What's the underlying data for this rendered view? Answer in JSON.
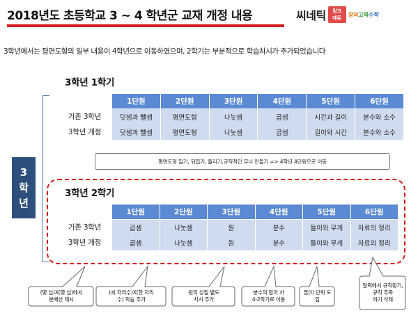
{
  "header": {
    "title": "2018년도 초등학교 3 ~ 4 학년군 교재 개정 내용",
    "brand_name": "씨네틱",
    "brand_box_text": "링크\n에듀",
    "brand_sub": [
      "창의",
      "고력",
      "수학"
    ]
  },
  "intro": "3학년에서는 평면도형의 일부 내용이 4학년으로 이동하였으며, 2학기는 부분적으로 학습차시가 추가되었습니다",
  "grade_tag": [
    "3",
    "학",
    "년"
  ],
  "colors": {
    "header_line": "#d41f1f",
    "table_header": "#5b8ad3",
    "table_cell": "#cfdcf0",
    "grade_tag": "#2c4f7c",
    "dashed_border": "#d31b1b"
  },
  "semester1": {
    "title": "3학년 1학기",
    "units": [
      "1단원",
      "2단원",
      "3단원",
      "4단원",
      "5단원",
      "6단원"
    ],
    "rows": [
      {
        "label": "기존 3학년",
        "cells": [
          "덧셈과 뺄셈",
          "평면도형",
          "나눗셈",
          "곱셈",
          "시간과 길이",
          "분수와 소수"
        ]
      },
      {
        "label": "3학년 개정",
        "cells": [
          "덧셈과 뺄셈",
          "평면도형",
          "나눗셈",
          "곱셈",
          "길이와 시간",
          "분수와 소수"
        ]
      }
    ],
    "note": "평면도형 밀기, 뒤집기, 돌리기,규칙적인 무늬 만들기 => 4학년 4단원으로 이동"
  },
  "semester2": {
    "title": "3학년 2학기",
    "units": [
      "1단원",
      "2단원",
      "3단원",
      "4단원",
      "5단원",
      "6단원"
    ],
    "rows": [
      {
        "label": "기존 3학년",
        "cells": [
          "곱셈",
          "나눗셈",
          "원",
          "분수",
          "들이와 무게",
          "자료의 정리"
        ]
      },
      {
        "label": "3학년 개정",
        "cells": [
          "곱셈",
          "나눗셈",
          "원",
          "분수",
          "들이와 무게",
          "자료의 정리"
        ]
      }
    ]
  },
  "callouts": [
    {
      "lines": [
        "(몇 십)X(몇 십)에서",
        "분배산 제시"
      ]
    },
    {
      "lines": [
        "(세 자리수)X(한 자리",
        "수) 학습 추가"
      ]
    },
    {
      "lines": [
        "원의 성질 별도",
        "차시 추가"
      ]
    },
    {
      "lines": [
        "분수의 합과 차",
        "4-2학기로 이동"
      ]
    },
    {
      "lines": [
        "톤(t) 단위 도",
        "입"
      ]
    },
    {
      "lines": [
        "달력에서 규칙찾기,",
        "규칙 추측",
        "하기 삭제"
      ]
    }
  ]
}
